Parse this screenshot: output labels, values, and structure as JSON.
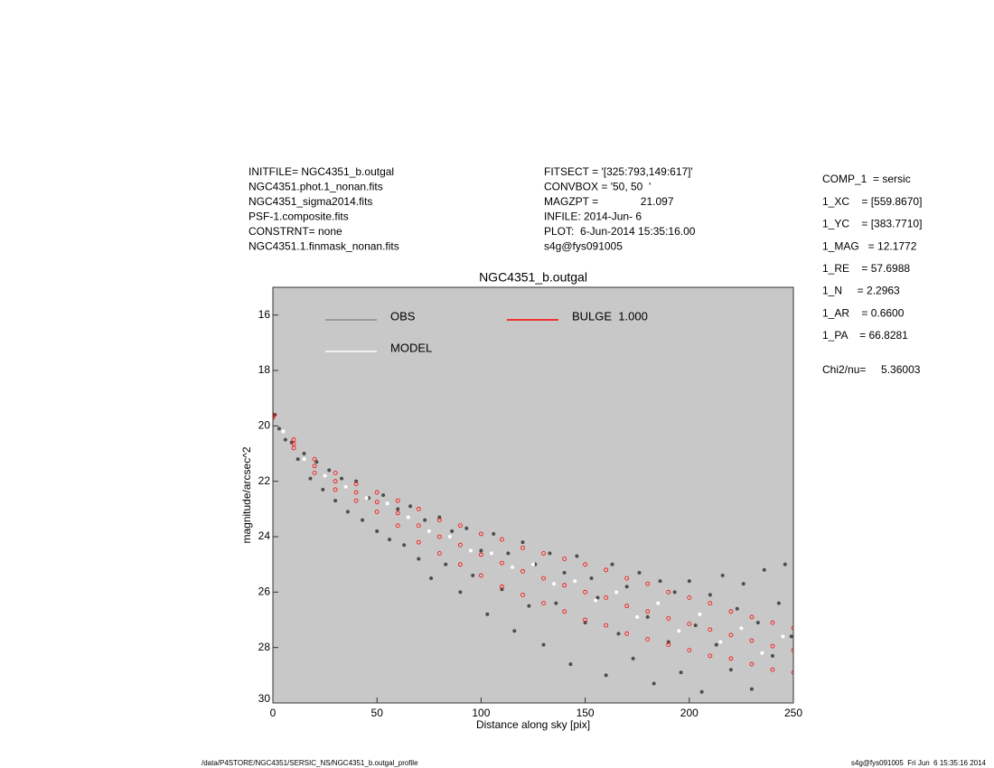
{
  "chart_data": {
    "type": "scatter",
    "title": "NGC4351_b.outgal",
    "x_label": "Distance along sky [pix]",
    "y_label": "magnitude/arcsec^2",
    "xlim": [
      0,
      250
    ],
    "xticks": [
      0,
      50,
      100,
      150,
      200,
      250
    ],
    "ylim": [
      15,
      30
    ],
    "yticks": [
      16,
      18,
      20,
      22,
      24,
      26,
      28,
      30
    ],
    "y_inverted": true,
    "background": "#c8c8c8",
    "legend": "top-left",
    "series": [
      {
        "name": "OBS",
        "color": "#4d4d4d",
        "x": [
          1,
          3,
          6,
          9,
          12,
          15,
          18,
          21,
          24,
          27,
          30,
          33,
          36,
          40,
          43,
          46,
          50,
          53,
          56,
          60,
          63,
          66,
          70,
          73,
          76,
          80,
          83,
          86,
          90,
          93,
          96,
          100,
          103,
          106,
          110,
          113,
          116,
          120,
          123,
          126,
          130,
          133,
          136,
          140,
          143,
          146,
          150,
          153,
          156,
          160,
          163,
          166,
          170,
          173,
          176,
          180,
          183,
          186,
          190,
          193,
          196,
          200,
          203,
          206,
          210,
          213,
          216,
          220,
          223,
          226,
          230,
          233,
          236,
          240,
          243,
          246,
          249
        ],
        "values": [
          19.6,
          20.1,
          20.5,
          20.6,
          21.2,
          21.0,
          21.9,
          21.3,
          22.3,
          21.6,
          22.7,
          21.9,
          23.1,
          22.0,
          23.4,
          22.6,
          23.8,
          22.5,
          24.1,
          23.0,
          24.3,
          22.9,
          24.8,
          23.4,
          25.5,
          23.3,
          25.0,
          23.8,
          26.0,
          23.7,
          25.4,
          24.5,
          26.8,
          23.9,
          25.9,
          24.6,
          27.4,
          24.2,
          26.5,
          25.0,
          27.9,
          24.6,
          26.4,
          25.3,
          28.6,
          24.7,
          27.1,
          25.5,
          26.2,
          29.0,
          25.0,
          27.5,
          25.8,
          28.4,
          25.3,
          26.9,
          29.3,
          25.6,
          27.8,
          26.0,
          28.9,
          25.6,
          27.2,
          29.6,
          26.1,
          27.9,
          25.4,
          28.8,
          26.6,
          25.7,
          29.5,
          27.1,
          25.2,
          28.3,
          26.4,
          25.0,
          27.6
        ]
      },
      {
        "name": "MODEL",
        "color": "#ffffff",
        "x": [
          5,
          15,
          25,
          35,
          45,
          55,
          65,
          75,
          85,
          95,
          105,
          115,
          125,
          135,
          145,
          155,
          165,
          175,
          185,
          195,
          205,
          215,
          225,
          235,
          245
        ],
        "values": [
          20.2,
          21.2,
          21.8,
          22.2,
          22.6,
          22.8,
          23.3,
          23.8,
          24.0,
          24.5,
          24.6,
          25.1,
          25.0,
          25.7,
          25.6,
          26.3,
          26.0,
          26.9,
          26.4,
          27.4,
          26.8,
          27.8,
          27.3,
          28.2,
          27.6
        ]
      },
      {
        "name": "BULGE  1.000",
        "color": "#ff0000",
        "x": [
          0,
          10,
          20,
          30,
          40,
          50,
          60,
          70,
          80,
          90,
          100,
          110,
          120,
          130,
          140,
          150,
          160,
          170,
          180,
          190,
          200,
          210,
          220,
          230,
          240,
          250,
          0,
          10,
          20,
          30,
          40,
          50,
          60,
          70,
          80,
          90,
          100,
          110,
          120,
          130,
          140,
          150,
          160,
          170,
          180,
          190,
          200,
          210,
          220,
          230,
          240,
          250,
          0,
          10,
          20,
          30,
          40,
          50,
          60,
          70,
          80,
          90,
          100,
          110,
          120,
          130,
          140,
          150,
          160,
          170,
          180,
          190,
          200,
          210,
          220,
          230,
          240,
          250
        ],
        "values": [
          19.6,
          20.5,
          21.2,
          21.7,
          22.1,
          22.4,
          22.7,
          23.0,
          23.4,
          23.6,
          23.9,
          24.1,
          24.4,
          24.6,
          24.8,
          25.0,
          25.2,
          25.5,
          25.7,
          26.0,
          26.2,
          26.4,
          26.7,
          26.9,
          27.1,
          27.3,
          19.65,
          20.65,
          21.45,
          22.0,
          22.4,
          22.75,
          23.15,
          23.6,
          24.0,
          24.3,
          24.65,
          24.95,
          25.25,
          25.5,
          25.75,
          26.0,
          26.2,
          26.5,
          26.7,
          26.95,
          27.15,
          27.35,
          27.55,
          27.75,
          27.95,
          28.1,
          19.7,
          20.8,
          21.7,
          22.3,
          22.7,
          23.1,
          23.6,
          24.2,
          24.6,
          25.0,
          25.4,
          25.8,
          26.1,
          26.4,
          26.7,
          27.0,
          27.2,
          27.5,
          27.7,
          27.9,
          28.1,
          28.3,
          28.4,
          28.6,
          28.8,
          28.9
        ]
      }
    ]
  },
  "info": {
    "left": [
      "INITFILE= NGC4351_b.outgal",
      "NGC4351.phot.1_nonan.fits",
      "NGC4351_sigma2014.fits",
      "PSF-1.composite.fits",
      "CONSTRNT= none",
      "NGC4351.1.finmask_nonan.fits"
    ],
    "middle": [
      "FITSECT = '[325:793,149:617]'",
      "CONVBOX = '50, 50  '",
      "MAGZPT =              21.097",
      "INFILE: 2014-Jun- 6",
      "PLOT:  6-Jun-2014 15:35:16.00",
      "s4g@fys091005"
    ],
    "right": [
      "COMP_1  = sersic",
      "1_XC    = [559.8670]",
      "1_YC    = [383.7710]",
      "1_MAG   = 12.1772",
      "1_RE    = 57.6988",
      "1_N     = 2.2963",
      "1_AR    = 0.6600",
      "1_PA    = 66.8281"
    ],
    "chi2": "Chi2/nu=     5.36003",
    "footer_left": "/data/P4STORE/NGC4351/SERSIC_NS/NGC4351_b.outgal_profile",
    "footer_right": "s4g@fys091005  Fri Jun  6 15:35:16 2014"
  }
}
